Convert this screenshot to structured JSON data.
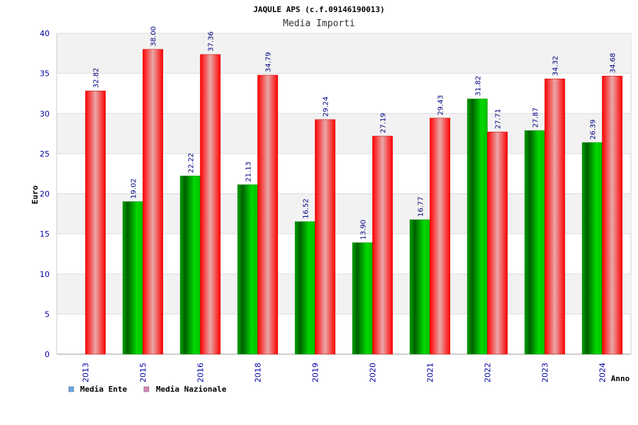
{
  "chart_data": {
    "type": "bar",
    "title": "JAQULE APS (c.f.09146190013)",
    "subtitle": "Media Importi",
    "xlabel": "Anno",
    "ylabel": "Euro",
    "ylim": [
      0,
      40
    ],
    "yticks": [
      0,
      5,
      10,
      15,
      20,
      25,
      30,
      35,
      40
    ],
    "grid": true,
    "legend_position": "bottom-left",
    "categories": [
      "2013",
      "2015",
      "2016",
      "2018",
      "2019",
      "2020",
      "2021",
      "2022",
      "2023",
      "2024"
    ],
    "series": [
      {
        "name": "Media Ente",
        "color": "#00c800",
        "legend_color": "#66aaee",
        "values": [
          null,
          19.02,
          22.22,
          21.13,
          16.52,
          13.9,
          16.77,
          31.82,
          27.87,
          26.39
        ],
        "labels": [
          "",
          "19.02",
          "22.22",
          "21.13",
          "16.52",
          "13.90",
          "16.77",
          "31.82",
          "27.87",
          "26.39"
        ]
      },
      {
        "name": "Media Nazionale",
        "color": "#ff2020",
        "legend_color": "#dd88bb",
        "values": [
          32.82,
          38.0,
          37.36,
          34.79,
          29.24,
          27.19,
          29.43,
          27.71,
          34.32,
          34.68
        ],
        "labels": [
          "32.82",
          "38.00",
          "37.36",
          "34.79",
          "29.24",
          "27.19",
          "29.43",
          "27.71",
          "34.32",
          "34.68"
        ]
      }
    ]
  }
}
